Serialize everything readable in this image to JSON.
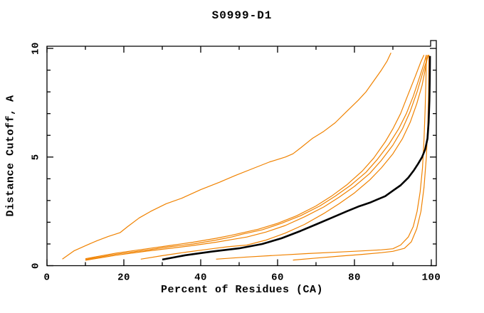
{
  "title": "S0999-D1",
  "axes": {
    "x": {
      "label": "Percent of Residues (CA)"
    },
    "y": {
      "label": "Distance Cutoff, A"
    }
  },
  "colors": {
    "background": "#ffffff",
    "frame": "#000000",
    "text": "#000000",
    "orange_curve": "#f08200",
    "black_curve": "#000000"
  },
  "chart_data": {
    "type": "line",
    "title": "S0999-D1",
    "xlabel": "Percent of Residues (CA)",
    "ylabel": "Distance Cutoff, A",
    "xlim": [
      0,
      101.3
    ],
    "ylim": [
      0,
      10.1
    ],
    "x_ticks_major": [
      0,
      20,
      40,
      60,
      80,
      100
    ],
    "x_ticks_minor": [
      10,
      30,
      50,
      70,
      90
    ],
    "y_ticks_major": [
      0,
      5,
      10
    ],
    "y_ticks_minor": [
      1,
      2,
      3,
      4,
      6,
      7,
      8,
      9
    ],
    "grid": false,
    "legend": "none",
    "series": [
      {
        "name": "orange-model-1",
        "color": "#f08200",
        "width": 1.2,
        "points": [
          [
            4,
            0.3
          ],
          [
            7,
            0.68
          ],
          [
            10,
            0.92
          ],
          [
            13,
            1.15
          ],
          [
            16,
            1.35
          ],
          [
            19,
            1.52
          ],
          [
            21,
            1.8
          ],
          [
            24,
            2.2
          ],
          [
            27,
            2.5
          ],
          [
            31,
            2.85
          ],
          [
            35,
            3.1
          ],
          [
            40,
            3.5
          ],
          [
            45,
            3.85
          ],
          [
            49,
            4.15
          ],
          [
            54,
            4.5
          ],
          [
            58,
            4.78
          ],
          [
            62,
            5.0
          ],
          [
            64,
            5.15
          ],
          [
            66,
            5.42
          ],
          [
            69,
            5.85
          ],
          [
            72,
            6.18
          ],
          [
            75,
            6.58
          ],
          [
            78,
            7.1
          ],
          [
            81,
            7.62
          ],
          [
            83,
            8.0
          ],
          [
            85,
            8.5
          ],
          [
            87,
            9.0
          ],
          [
            88.5,
            9.42
          ],
          [
            89.5,
            9.8
          ]
        ]
      },
      {
        "name": "orange-model-2",
        "color": "#f08200",
        "width": 1.2,
        "points": [
          [
            10,
            0.32
          ],
          [
            18,
            0.58
          ],
          [
            26,
            0.78
          ],
          [
            32,
            0.93
          ],
          [
            38,
            1.08
          ],
          [
            44,
            1.26
          ],
          [
            48,
            1.4
          ],
          [
            51,
            1.52
          ],
          [
            55,
            1.68
          ],
          [
            60,
            1.95
          ],
          [
            65,
            2.3
          ],
          [
            70,
            2.75
          ],
          [
            74,
            3.2
          ],
          [
            78,
            3.72
          ],
          [
            82,
            4.35
          ],
          [
            85,
            4.95
          ],
          [
            88,
            5.7
          ],
          [
            90,
            6.3
          ],
          [
            92,
            7.0
          ],
          [
            94,
            7.9
          ],
          [
            95.8,
            8.7
          ],
          [
            97.2,
            9.35
          ],
          [
            98.1,
            9.7
          ]
        ]
      },
      {
        "name": "orange-model-3",
        "color": "#f08200",
        "width": 1.2,
        "points": [
          [
            10,
            0.28
          ],
          [
            18,
            0.53
          ],
          [
            26,
            0.72
          ],
          [
            32,
            0.87
          ],
          [
            38,
            1.0
          ],
          [
            44,
            1.18
          ],
          [
            48,
            1.32
          ],
          [
            51,
            1.46
          ],
          [
            56,
            1.65
          ],
          [
            61,
            1.95
          ],
          [
            66,
            2.3
          ],
          [
            71,
            2.75
          ],
          [
            75,
            3.2
          ],
          [
            79,
            3.7
          ],
          [
            83,
            4.3
          ],
          [
            86,
            4.9
          ],
          [
            89,
            5.6
          ],
          [
            91.5,
            6.3
          ],
          [
            93.5,
            7.0
          ],
          [
            95.3,
            7.8
          ],
          [
            96.8,
            8.6
          ],
          [
            98,
            9.25
          ],
          [
            98.7,
            9.7
          ]
        ]
      },
      {
        "name": "orange-model-4",
        "color": "#f08200",
        "width": 1.2,
        "points": [
          [
            10,
            0.25
          ],
          [
            18,
            0.48
          ],
          [
            26,
            0.67
          ],
          [
            32,
            0.8
          ],
          [
            38,
            0.93
          ],
          [
            44,
            1.08
          ],
          [
            48,
            1.2
          ],
          [
            52,
            1.32
          ],
          [
            57,
            1.55
          ],
          [
            62,
            1.85
          ],
          [
            67,
            2.25
          ],
          [
            72,
            2.7
          ],
          [
            76,
            3.15
          ],
          [
            80,
            3.65
          ],
          [
            84,
            4.25
          ],
          [
            87,
            4.85
          ],
          [
            90,
            5.55
          ],
          [
            92.5,
            6.3
          ],
          [
            94.5,
            7.1
          ],
          [
            96.3,
            8.0
          ],
          [
            97.8,
            8.9
          ],
          [
            98.9,
            9.5
          ],
          [
            99.3,
            9.7
          ]
        ]
      },
      {
        "name": "orange-model-5",
        "color": "#f08200",
        "width": 1.2,
        "points": [
          [
            24.4,
            0.3
          ],
          [
            30,
            0.46
          ],
          [
            36,
            0.62
          ],
          [
            42,
            0.76
          ],
          [
            47,
            0.87
          ],
          [
            52,
            0.95
          ],
          [
            57,
            1.18
          ],
          [
            62,
            1.5
          ],
          [
            67,
            1.9
          ],
          [
            72,
            2.4
          ],
          [
            76,
            2.85
          ],
          [
            80,
            3.35
          ],
          [
            84,
            3.95
          ],
          [
            87,
            4.5
          ],
          [
            90,
            5.15
          ],
          [
            92.5,
            5.85
          ],
          [
            94.5,
            6.6
          ],
          [
            96.2,
            7.45
          ],
          [
            97.6,
            8.3
          ],
          [
            98.6,
            9.2
          ],
          [
            99.1,
            9.7
          ]
        ]
      },
      {
        "name": "orange-model-6",
        "color": "#f08200",
        "width": 1.2,
        "points": [
          [
            44,
            0.3
          ],
          [
            52,
            0.4
          ],
          [
            60,
            0.48
          ],
          [
            68,
            0.56
          ],
          [
            76,
            0.63
          ],
          [
            82,
            0.68
          ],
          [
            87,
            0.73
          ],
          [
            90,
            0.78
          ],
          [
            92,
            0.95
          ],
          [
            94,
            1.32
          ],
          [
            95.3,
            1.8
          ],
          [
            96.3,
            2.5
          ],
          [
            97.1,
            3.4
          ],
          [
            97.7,
            4.5
          ],
          [
            98.1,
            5.8
          ],
          [
            98.4,
            7.2
          ],
          [
            98.6,
            8.5
          ],
          [
            98.7,
            9.7
          ]
        ]
      },
      {
        "name": "orange-model-7",
        "color": "#f08200",
        "width": 1.2,
        "points": [
          [
            64,
            0.26
          ],
          [
            70,
            0.35
          ],
          [
            76,
            0.44
          ],
          [
            82,
            0.52
          ],
          [
            87,
            0.6
          ],
          [
            90,
            0.66
          ],
          [
            93,
            0.8
          ],
          [
            94.8,
            1.1
          ],
          [
            96.2,
            1.7
          ],
          [
            97.3,
            2.5
          ],
          [
            98.1,
            3.6
          ],
          [
            98.7,
            5.0
          ],
          [
            99.1,
            6.5
          ],
          [
            99.3,
            8.0
          ],
          [
            99.4,
            9.7
          ]
        ]
      },
      {
        "name": "black-main-model",
        "color": "#000000",
        "width": 2.6,
        "points": [
          [
            30,
            0.28
          ],
          [
            36,
            0.48
          ],
          [
            43,
            0.65
          ],
          [
            50,
            0.8
          ],
          [
            56,
            1.0
          ],
          [
            61,
            1.26
          ],
          [
            66,
            1.6
          ],
          [
            70,
            1.9
          ],
          [
            74,
            2.2
          ],
          [
            78,
            2.5
          ],
          [
            81,
            2.72
          ],
          [
            84,
            2.9
          ],
          [
            86,
            3.05
          ],
          [
            88,
            3.2
          ],
          [
            90,
            3.45
          ],
          [
            92,
            3.7
          ],
          [
            94,
            4.05
          ],
          [
            95.5,
            4.4
          ],
          [
            96.6,
            4.7
          ],
          [
            97.6,
            5.0
          ],
          [
            98.4,
            5.35
          ],
          [
            99,
            5.85
          ],
          [
            99.3,
            6.6
          ],
          [
            99.5,
            7.6
          ],
          [
            99.6,
            8.6
          ],
          [
            99.65,
            9.65
          ]
        ]
      }
    ]
  }
}
